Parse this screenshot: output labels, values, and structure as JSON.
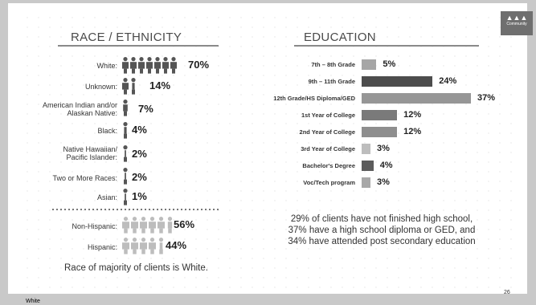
{
  "footer_text": "White",
  "page_number": "26",
  "logo": {
    "text": "Community"
  },
  "race": {
    "title": "RACE / ETHNICITY",
    "rows": [
      {
        "label": "White:",
        "pct": "70%",
        "value": 70
      },
      {
        "label": "Unknown:",
        "pct": "14%",
        "value": 14
      },
      {
        "label": "American Indian and/or Alaskan Native:",
        "pct": "7%",
        "value": 7
      },
      {
        "label": "Black:",
        "pct": "4%",
        "value": 4
      },
      {
        "label": "Native Hawaiian/ Pacific Islander:",
        "pct": "2%",
        "value": 2
      },
      {
        "label": "Two or More Races:",
        "pct": "2%",
        "value": 2
      },
      {
        "label": "Asian:",
        "pct": "1%",
        "value": 1
      }
    ],
    "ethnicity": [
      {
        "label": "Non-Hispanic:",
        "pct": "56%",
        "value": 56
      },
      {
        "label": "Hispanic:",
        "pct": "44%",
        "value": 44
      }
    ],
    "majority_note": "Race of majority of clients is White."
  },
  "education": {
    "title": "EDUCATION",
    "note": "29% of clients have not finished high school, 37% have a high school diploma or GED, and 34% have attended post secondary education"
  },
  "chart_data": {
    "type": "bar",
    "orientation": "horizontal",
    "title": "EDUCATION",
    "categories": [
      "7th – 8th Grade",
      "9th – 11th Grade",
      "12th Grade/HS Diploma/GED",
      "1st Year of College",
      "2nd Year of College",
      "3rd Year of College",
      "Bachelor's Degree",
      "Voc/Tech program"
    ],
    "values": [
      5,
      24,
      37,
      12,
      12,
      3,
      4,
      3
    ],
    "value_labels": [
      "5%",
      "24%",
      "37%",
      "12%",
      "12%",
      "3%",
      "4%",
      "3%"
    ],
    "colors": [
      "#a6a6a6",
      "#4d4d4d",
      "#969696",
      "#7a7a7a",
      "#8e8e8e",
      "#bdbdbd",
      "#5c5c5c",
      "#a8a8a8"
    ]
  }
}
